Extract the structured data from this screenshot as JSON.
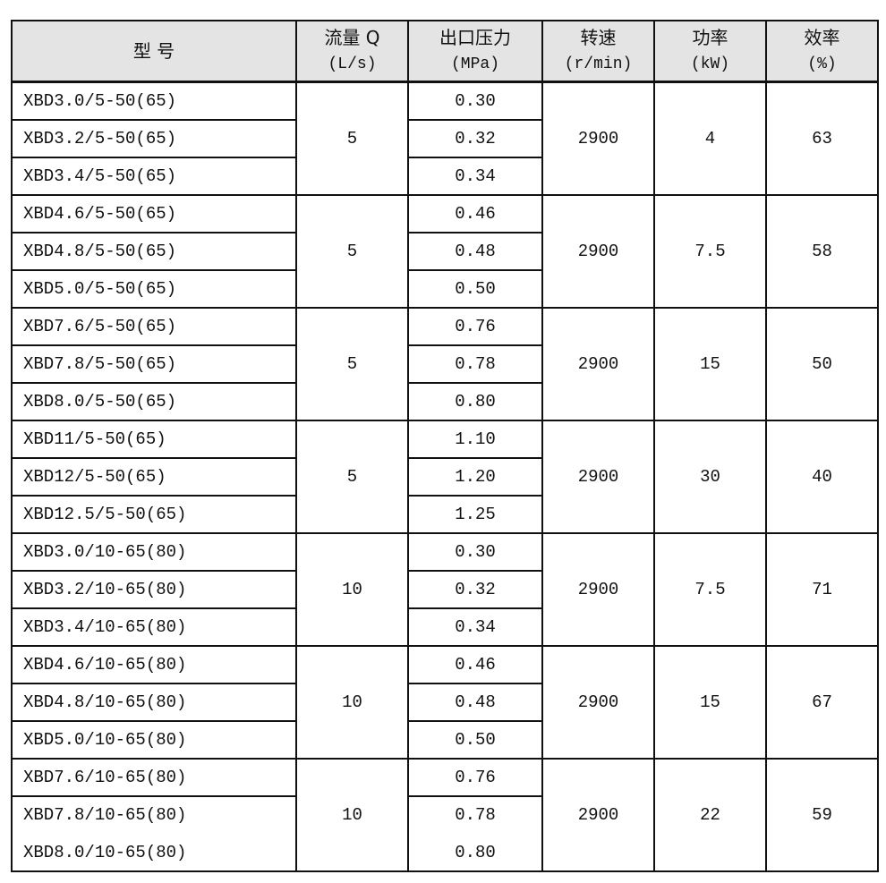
{
  "headers": [
    {
      "line1": "型  号",
      "line2": ""
    },
    {
      "line1": "流量 Q",
      "line2": "(L/s)"
    },
    {
      "line1": "出口压力",
      "line2": "(MPa)"
    },
    {
      "line1": "转速",
      "line2": "(r/min)"
    },
    {
      "line1": "功率",
      "line2": "(kW)"
    },
    {
      "line1": "效率",
      "line2": "(%)"
    }
  ],
  "groups": [
    {
      "flow": "5",
      "speed": "2900",
      "power": "4",
      "efficiency": "63",
      "rows": [
        {
          "model": "XBD3.0/5-50(65)",
          "pressure": "0.30"
        },
        {
          "model": "XBD3.2/5-50(65)",
          "pressure": "0.32"
        },
        {
          "model": "XBD3.4/5-50(65)",
          "pressure": "0.34"
        }
      ]
    },
    {
      "flow": "5",
      "speed": "2900",
      "power": "7.5",
      "efficiency": "58",
      "rows": [
        {
          "model": "XBD4.6/5-50(65)",
          "pressure": "0.46"
        },
        {
          "model": "XBD4.8/5-50(65)",
          "pressure": "0.48"
        },
        {
          "model": "XBD5.0/5-50(65)",
          "pressure": "0.50"
        }
      ]
    },
    {
      "flow": "5",
      "speed": "2900",
      "power": "15",
      "efficiency": "50",
      "rows": [
        {
          "model": "XBD7.6/5-50(65)",
          "pressure": "0.76"
        },
        {
          "model": "XBD7.8/5-50(65)",
          "pressure": "0.78"
        },
        {
          "model": "XBD8.0/5-50(65)",
          "pressure": "0.80"
        }
      ]
    },
    {
      "flow": "5",
      "speed": "2900",
      "power": "30",
      "efficiency": "40",
      "rows": [
        {
          "model": "XBD11/5-50(65)",
          "pressure": "1.10"
        },
        {
          "model": "XBD12/5-50(65)",
          "pressure": "1.20"
        },
        {
          "model": "XBD12.5/5-50(65)",
          "pressure": "1.25"
        }
      ]
    },
    {
      "flow": "10",
      "speed": "2900",
      "power": "7.5",
      "efficiency": "71",
      "rows": [
        {
          "model": "XBD3.0/10-65(80)",
          "pressure": "0.30"
        },
        {
          "model": "XBD3.2/10-65(80)",
          "pressure": "0.32"
        },
        {
          "model": "XBD3.4/10-65(80)",
          "pressure": "0.34"
        }
      ]
    },
    {
      "flow": "10",
      "speed": "2900",
      "power": "15",
      "efficiency": "67",
      "rows": [
        {
          "model": "XBD4.6/10-65(80)",
          "pressure": "0.46"
        },
        {
          "model": "XBD4.8/10-65(80)",
          "pressure": "0.48"
        },
        {
          "model": "XBD5.0/10-65(80)",
          "pressure": "0.50"
        }
      ]
    },
    {
      "flow": "10",
      "speed": "2900",
      "power": "22",
      "efficiency": "59",
      "rows": [
        {
          "model": "XBD7.6/10-65(80)",
          "pressure": "0.76"
        },
        {
          "model": "XBD7.8/10-65(80)",
          "pressure": "0.78"
        },
        {
          "model": "XBD8.0/10-65(80)",
          "pressure": "0.80"
        }
      ]
    }
  ]
}
